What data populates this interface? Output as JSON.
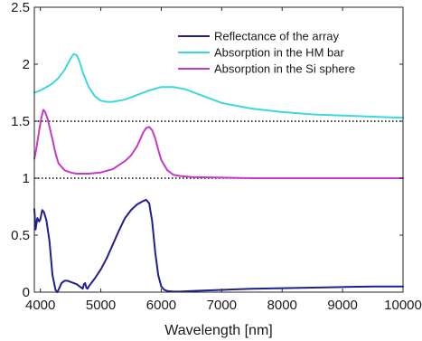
{
  "chart_data": {
    "type": "line",
    "title": "",
    "xlabel": "Wavelength [nm]",
    "ylabel": "",
    "xlim": [
      3900,
      10000
    ],
    "ylim": [
      0,
      2.5
    ],
    "xticks": [
      4000,
      5000,
      6000,
      7000,
      8000,
      9000,
      10000
    ],
    "yticks": [
      0,
      0.5,
      1,
      1.5,
      2,
      2.5
    ],
    "xtick_labels": [
      "4000",
      "5000",
      "6000",
      "7000",
      "8000",
      "9000",
      "10000"
    ],
    "ytick_labels": [
      "0",
      "0.5",
      "1",
      "1.5",
      "2",
      "2.5"
    ],
    "grid": false,
    "legend_position": "top-right",
    "reference_lines": [
      {
        "y": 1.5,
        "style": "dotted",
        "color": "#000000"
      },
      {
        "y": 1.0,
        "style": "dotted",
        "color": "#000000"
      }
    ],
    "series": [
      {
        "name": "Reflectance of the array",
        "color": "#1f1f8f",
        "x": [
          3900,
          3920,
          3950,
          3980,
          4000,
          4030,
          4060,
          4100,
          4150,
          4200,
          4250,
          4280,
          4300,
          4350,
          4400,
          4450,
          4500,
          4550,
          4600,
          4650,
          4700,
          4720,
          4740,
          4760,
          4780,
          4800,
          4900,
          5000,
          5100,
          5200,
          5300,
          5400,
          5500,
          5600,
          5700,
          5750,
          5800,
          5850,
          5900,
          5950,
          6000,
          6050,
          6100,
          6200,
          6300,
          6500,
          7000,
          7500,
          8000,
          8500,
          9000,
          9500,
          10000
        ],
        "y": [
          0.73,
          0.55,
          0.65,
          0.62,
          0.64,
          0.72,
          0.7,
          0.63,
          0.45,
          0.15,
          0.02,
          0.0,
          0.02,
          0.08,
          0.1,
          0.1,
          0.09,
          0.08,
          0.07,
          0.05,
          0.03,
          0.07,
          0.08,
          0.04,
          0.03,
          0.05,
          0.12,
          0.2,
          0.3,
          0.42,
          0.54,
          0.65,
          0.72,
          0.77,
          0.8,
          0.81,
          0.78,
          0.62,
          0.35,
          0.15,
          0.05,
          0.02,
          0.01,
          0.005,
          0.005,
          0.01,
          0.02,
          0.03,
          0.035,
          0.04,
          0.045,
          0.05,
          0.05
        ]
      },
      {
        "name": "Absorption in the HM bar",
        "color": "#3dd8dc",
        "x": [
          3900,
          4000,
          4100,
          4200,
          4300,
          4400,
          4500,
          4550,
          4600,
          4650,
          4700,
          4800,
          4900,
          5000,
          5100,
          5200,
          5300,
          5400,
          5600,
          5800,
          6000,
          6200,
          6400,
          6600,
          6800,
          7000,
          7500,
          8000,
          8500,
          9000,
          9500,
          10000
        ],
        "y": [
          1.75,
          1.77,
          1.8,
          1.83,
          1.88,
          1.95,
          2.05,
          2.09,
          2.08,
          2.02,
          1.93,
          1.8,
          1.72,
          1.68,
          1.67,
          1.67,
          1.68,
          1.69,
          1.73,
          1.77,
          1.8,
          1.8,
          1.78,
          1.74,
          1.7,
          1.66,
          1.61,
          1.58,
          1.56,
          1.55,
          1.54,
          1.53
        ]
      },
      {
        "name": "Absorption in the Si sphere",
        "color": "#c63ac6",
        "x": [
          3900,
          3930,
          3960,
          3990,
          4020,
          4050,
          4080,
          4120,
          4160,
          4200,
          4250,
          4300,
          4400,
          4500,
          4600,
          4800,
          5000,
          5200,
          5400,
          5500,
          5600,
          5650,
          5700,
          5750,
          5800,
          5850,
          5900,
          5950,
          6000,
          6100,
          6200,
          6300,
          6500,
          7000,
          7500,
          8000,
          9000,
          10000
        ],
        "y": [
          1.17,
          1.25,
          1.35,
          1.45,
          1.54,
          1.6,
          1.58,
          1.52,
          1.43,
          1.34,
          1.22,
          1.13,
          1.07,
          1.05,
          1.04,
          1.04,
          1.05,
          1.08,
          1.15,
          1.2,
          1.28,
          1.34,
          1.4,
          1.44,
          1.45,
          1.42,
          1.35,
          1.25,
          1.16,
          1.07,
          1.03,
          1.02,
          1.01,
          1.005,
          1.0,
          1.0,
          1.0,
          1.0
        ]
      }
    ]
  }
}
